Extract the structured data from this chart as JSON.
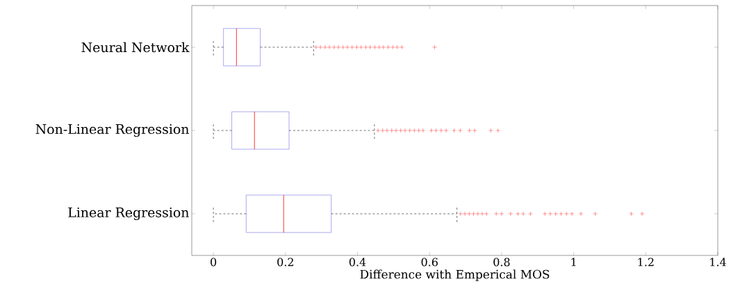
{
  "chart_data": {
    "type": "box",
    "orientation": "horizontal",
    "xlabel": "Difference with Emperical MOS",
    "categories": [
      "Neural Network",
      "Non-Linear Regression",
      "Linear Regression"
    ],
    "boxes": [
      {
        "low": 0,
        "q1": 0.028,
        "median": 0.064,
        "q3": 0.13,
        "high": 0.278,
        "outliers": [
          0.285,
          0.297,
          0.31,
          0.322,
          0.335,
          0.347,
          0.36,
          0.372,
          0.385,
          0.398,
          0.41,
          0.423,
          0.435,
          0.448,
          0.46,
          0.472,
          0.485,
          0.498,
          0.51,
          0.523,
          0.614
        ]
      },
      {
        "low": 0,
        "q1": 0.051,
        "median": 0.114,
        "q3": 0.21,
        "high": 0.447,
        "outliers": [
          0.457,
          0.47,
          0.482,
          0.495,
          0.507,
          0.52,
          0.532,
          0.545,
          0.558,
          0.57,
          0.582,
          0.605,
          0.618,
          0.632,
          0.646,
          0.668,
          0.685,
          0.711,
          0.725,
          0.77,
          0.79
        ]
      },
      {
        "low": 0,
        "q1": 0.091,
        "median": 0.195,
        "q3": 0.327,
        "high": 0.676,
        "outliers": [
          0.686,
          0.698,
          0.71,
          0.722,
          0.734,
          0.746,
          0.758,
          0.785,
          0.8,
          0.825,
          0.845,
          0.86,
          0.88,
          0.92,
          0.935,
          0.95,
          0.965,
          0.98,
          0.995,
          1.02,
          1.06,
          1.16,
          1.19
        ]
      }
    ],
    "color": "#2b2bd6",
    "marker": "cross",
    "xlim": [
      -0.06,
      1.4
    ],
    "xticks": [
      0,
      0.2,
      0.4,
      0.6,
      0.8,
      1,
      1.2,
      1.4
    ]
  }
}
